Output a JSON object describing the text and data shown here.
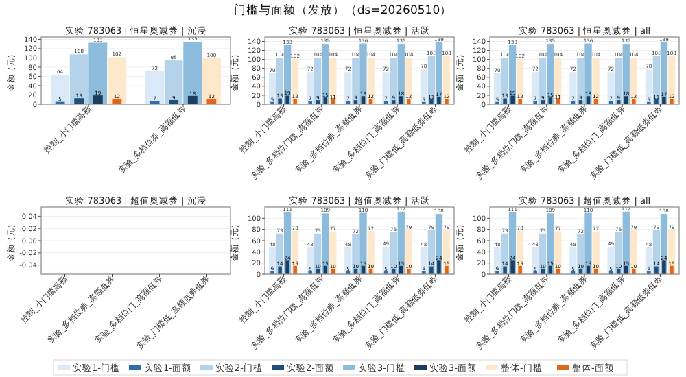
{
  "chart_data": [
    {
      "type": "bar",
      "title": "实验 783063 | 恒星奥减券 | 沉浸",
      "ylabel": "金额（元）",
      "annotations": [
        "门槛与面额（发放）（ds=20260510）"
      ],
      "legend": "bottom",
      "grid": "y",
      "data_labels": true,
      "categories": [
        "控制_小门槛高额",
        "实验_多档位券_高额低券"
      ],
      "ylim": [
        0,
        145
      ],
      "yticks": [
        0,
        20,
        40,
        60,
        80,
        100,
        120,
        140
      ],
      "series": [
        {
          "name": "实验1-门槛",
          "color": "#d9e9f7",
          "values": [
            64,
            72
          ]
        },
        {
          "name": "实验1-面额",
          "color": "#2c6fab",
          "values": [
            5,
            7
          ]
        },
        {
          "name": "实验2-门槛",
          "color": "#b4d3ea",
          "values": [
            108,
            95
          ]
        },
        {
          "name": "实验2-面额",
          "color": "#1f4e79",
          "values": [
            13,
            9
          ]
        },
        {
          "name": "实验3-门槛",
          "color": "#8dbbdc",
          "values": [
            133,
            135
          ]
        },
        {
          "name": "实验3-面额",
          "color": "#1c3d5e",
          "values": [
            19,
            18
          ]
        },
        {
          "name": "整体-门槛",
          "color": "#fde8cb",
          "values": [
            102,
            100
          ]
        },
        {
          "name": "整体-面额",
          "color": "#e0661a",
          "values": [
            12,
            12
          ]
        }
      ]
    },
    {
      "type": "bar",
      "title": "实验 783063 | 恒星奥减券 | 活跃",
      "ylabel": "金额（元）",
      "grid": "y",
      "data_labels": true,
      "categories": [
        "控制_小门槛高额",
        "实验_多档位门槛_高额低券",
        "实验_多档位券_高额低券",
        "实验_多档位门_高额低券",
        "实验_门槛低_高额低券低券"
      ],
      "ylim": [
        0,
        150
      ],
      "yticks": [
        0,
        20,
        40,
        60,
        80,
        100,
        120,
        140
      ],
      "series": [
        {
          "color": "#d9e9f7",
          "values": [
            70,
            72,
            72,
            72,
            78
          ]
        },
        {
          "color": "#2c6fab",
          "values": [
            5,
            7,
            7,
            7,
            5
          ]
        },
        {
          "color": "#b4d3ea",
          "values": [
            104,
            104,
            104,
            104,
            108
          ]
        },
        {
          "color": "#1f4e79",
          "values": [
            13,
            9,
            9,
            9,
            11
          ]
        },
        {
          "color": "#8dbbdc",
          "values": [
            133,
            135,
            136,
            135,
            139
          ]
        },
        {
          "color": "#1c3d5e",
          "values": [
            19,
            15,
            18,
            18,
            17
          ]
        },
        {
          "color": "#fde8cb",
          "values": [
            102,
            104,
            104,
            104,
            108
          ]
        },
        {
          "color": "#e0661a",
          "values": [
            12,
            11,
            12,
            12,
            12
          ]
        }
      ]
    },
    {
      "type": "bar",
      "title": "实验 783063 | 恒星奥减券 | all",
      "ylabel": "金额（元）",
      "grid": "y",
      "data_labels": true,
      "categories": [
        "控制_小门槛高额",
        "实验_多档位门槛_高额低券",
        "实验_多档位券_高额低券",
        "实验_多档位门_高额低券",
        "实验_门槛低_高额低券低券"
      ],
      "ylim": [
        0,
        150
      ],
      "yticks": [
        0,
        20,
        40,
        60,
        80,
        100,
        120,
        140
      ],
      "series": [
        {
          "color": "#d9e9f7",
          "values": [
            70,
            72,
            72,
            72,
            78
          ]
        },
        {
          "color": "#2c6fab",
          "values": [
            5,
            7,
            7,
            7,
            5
          ]
        },
        {
          "color": "#b4d3ea",
          "values": [
            104,
            104,
            104,
            104,
            108
          ]
        },
        {
          "color": "#1f4e79",
          "values": [
            13,
            9,
            9,
            9,
            11
          ]
        },
        {
          "color": "#8dbbdc",
          "values": [
            133,
            135,
            136,
            135,
            139
          ]
        },
        {
          "color": "#1c3d5e",
          "values": [
            19,
            15,
            18,
            18,
            17
          ]
        },
        {
          "color": "#fde8cb",
          "values": [
            102,
            104,
            104,
            104,
            108
          ]
        },
        {
          "color": "#e0661a",
          "values": [
            12,
            11,
            12,
            12,
            12
          ]
        }
      ]
    },
    {
      "type": "bar",
      "title": "实验 783063 | 超值奥减券 | 沉浸",
      "ylabel": "金额（元）",
      "grid": "y",
      "categories": [
        "控制_小门槛高额",
        "实验_多档位券_高额低券",
        "实验_多档位门_高额低券",
        "实验_门槛低_高额低券低券"
      ],
      "ylim": [
        -0.055,
        0.055
      ],
      "yticks": [
        {
          "value": -0.04,
          "label": "-0.04"
        },
        {
          "value": -0.02,
          "label": "-0.02"
        },
        {
          "value": 0,
          "label": "0.00"
        },
        {
          "value": 0.02,
          "label": "0.02"
        },
        {
          "value": 0.04,
          "label": "0.04"
        }
      ]
    },
    {
      "type": "bar",
      "title": "实验 783063 | 超值奥减券 | 活跃",
      "ylabel": "金额（元）",
      "grid": "y",
      "data_labels": true,
      "categories": [
        "控制_小门槛高额",
        "实验_多档位门槛_高额低券",
        "实验_多档位券_高额低券",
        "实验_多档位门_高额低券",
        "实验_门槛低_高额低券低券"
      ],
      "ylim": [
        0,
        120
      ],
      "yticks": [
        0,
        20,
        40,
        60,
        80,
        100
      ],
      "series": [
        {
          "color": "#d9e9f7",
          "values": [
            48,
            48,
            48,
            49,
            48
          ]
        },
        {
          "color": "#2c6fab",
          "values": [
            6,
            5,
            5,
            5,
            6
          ]
        },
        {
          "color": "#b4d3ea",
          "values": [
            73,
            73,
            72,
            75,
            79
          ]
        },
        {
          "color": "#1f4e79",
          "values": [
            14,
            10,
            10,
            10,
            14
          ]
        },
        {
          "color": "#8dbbdc",
          "values": [
            111,
            109,
            110,
            112,
            108
          ]
        },
        {
          "color": "#1c3d5e",
          "values": [
            24,
            15,
            15,
            15,
            24
          ]
        },
        {
          "color": "#fde8cb",
          "values": [
            78,
            77,
            77,
            79,
            79
          ]
        },
        {
          "color": "#e0661a",
          "values": [
            15,
            10,
            10,
            10,
            15
          ]
        }
      ]
    },
    {
      "type": "bar",
      "title": "实验 783063 | 超值奥减券 | all",
      "ylabel": "金额（元）",
      "grid": "y",
      "data_labels": true,
      "categories": [
        "控制_小门槛高额",
        "实验_多档位门槛_高额低券",
        "实验_多档位券_高额低券",
        "实验_多档位门_高额低券",
        "实验_门槛低_高额低券低券"
      ],
      "ylim": [
        0,
        120
      ],
      "yticks": [
        0,
        20,
        40,
        60,
        80,
        100
      ],
      "series": [
        {
          "color": "#d9e9f7",
          "values": [
            48,
            48,
            48,
            49,
            48
          ]
        },
        {
          "color": "#2c6fab",
          "values": [
            6,
            5,
            5,
            5,
            6
          ]
        },
        {
          "color": "#b4d3ea",
          "values": [
            73,
            73,
            72,
            75,
            79
          ]
        },
        {
          "color": "#1f4e79",
          "values": [
            14,
            10,
            10,
            10,
            14
          ]
        },
        {
          "color": "#8dbbdc",
          "values": [
            111,
            109,
            110,
            112,
            108
          ]
        },
        {
          "color": "#1c3d5e",
          "values": [
            24,
            15,
            15,
            15,
            24
          ]
        },
        {
          "color": "#fde8cb",
          "values": [
            78,
            77,
            77,
            79,
            79
          ]
        },
        {
          "color": "#e0661a",
          "values": [
            15,
            10,
            10,
            10,
            15
          ]
        }
      ]
    }
  ]
}
